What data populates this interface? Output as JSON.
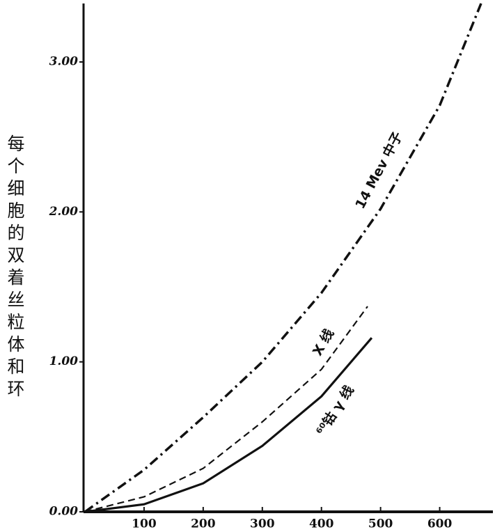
{
  "chart_data": {
    "type": "line",
    "ylabel": "每个细胞的双着丝粒体和环",
    "xlim": [
      0,
      690
    ],
    "ylim": [
      0,
      3.39
    ],
    "xticks": [
      100,
      200,
      300,
      400,
      500,
      600
    ],
    "yticks": [
      {
        "value": 0,
        "label": "0.00"
      },
      {
        "value": 1,
        "label": "1.00"
      },
      {
        "value": 2,
        "label": "2.00"
      },
      {
        "value": 3,
        "label": "3.00"
      }
    ],
    "series": [
      {
        "name": "14 Mev 中子",
        "color": "#111111",
        "style": "dashdot",
        "x": [
          0,
          100,
          200,
          300,
          400,
          500,
          600,
          670
        ],
        "values": [
          0,
          0.28,
          0.63,
          1.0,
          1.46,
          2.02,
          2.71,
          3.39
        ]
      },
      {
        "name": "X 线",
        "color": "#111111",
        "style": "dashed",
        "x": [
          0,
          100,
          200,
          300,
          400,
          478
        ],
        "values": [
          0,
          0.1,
          0.29,
          0.6,
          0.95,
          1.37
        ]
      },
      {
        "name": "⁶⁰钴 γ 线",
        "color": "#111111",
        "style": "solid",
        "x": [
          0,
          100,
          200,
          300,
          400,
          485
        ],
        "values": [
          0,
          0.05,
          0.19,
          0.44,
          0.77,
          1.16
        ]
      }
    ]
  }
}
